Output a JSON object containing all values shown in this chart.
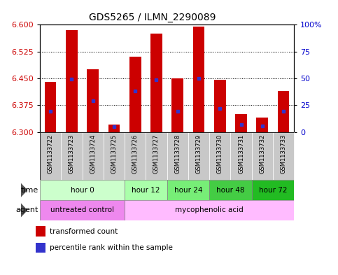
{
  "title": "GDS5265 / ILMN_2290089",
  "samples": [
    "GSM1133722",
    "GSM1133723",
    "GSM1133724",
    "GSM1133725",
    "GSM1133726",
    "GSM1133727",
    "GSM1133728",
    "GSM1133729",
    "GSM1133730",
    "GSM1133731",
    "GSM1133732",
    "GSM1133733"
  ],
  "bar_bottoms": [
    6.3,
    6.3,
    6.3,
    6.3,
    6.3,
    6.3,
    6.3,
    6.3,
    6.3,
    6.3,
    6.3,
    6.3
  ],
  "bar_tops": [
    6.44,
    6.585,
    6.475,
    6.32,
    6.51,
    6.575,
    6.45,
    6.595,
    6.447,
    6.35,
    6.34,
    6.415
  ],
  "percentile_values": [
    6.358,
    6.448,
    6.388,
    6.315,
    6.415,
    6.447,
    6.358,
    6.45,
    6.365,
    6.32,
    6.316,
    6.358
  ],
  "ylim": [
    6.3,
    6.6
  ],
  "yticks": [
    6.3,
    6.375,
    6.45,
    6.525,
    6.6
  ],
  "right_yticks": [
    0,
    25,
    50,
    75,
    100
  ],
  "right_yticklabels": [
    "0",
    "25",
    "50",
    "75",
    "100%"
  ],
  "bar_color": "#cc0000",
  "percentile_color": "#3333cc",
  "grid_color": "#000000",
  "sample_bg_color": "#c8c8c8",
  "time_groups": [
    {
      "label": "hour 0",
      "start": 0,
      "end": 3,
      "color": "#ccffcc"
    },
    {
      "label": "hour 12",
      "start": 4,
      "end": 5,
      "color": "#aaffaa"
    },
    {
      "label": "hour 24",
      "start": 6,
      "end": 7,
      "color": "#77ee77"
    },
    {
      "label": "hour 48",
      "start": 8,
      "end": 9,
      "color": "#44cc44"
    },
    {
      "label": "hour 72",
      "start": 10,
      "end": 11,
      "color": "#22bb22"
    }
  ],
  "agent_groups": [
    {
      "label": "untreated control",
      "start": 0,
      "end": 3,
      "color": "#ee88ee"
    },
    {
      "label": "mycophenolic acid",
      "start": 4,
      "end": 11,
      "color": "#ffbbff"
    }
  ],
  "legend_items": [
    {
      "label": "transformed count",
      "color": "#cc0000"
    },
    {
      "label": "percentile rank within the sample",
      "color": "#3333cc"
    }
  ],
  "ylabel_color": "#cc0000",
  "ylabel2_color": "#0000cc",
  "title_fontsize": 10,
  "tick_fontsize": 8,
  "sample_fontsize": 6,
  "label_fontsize": 8
}
